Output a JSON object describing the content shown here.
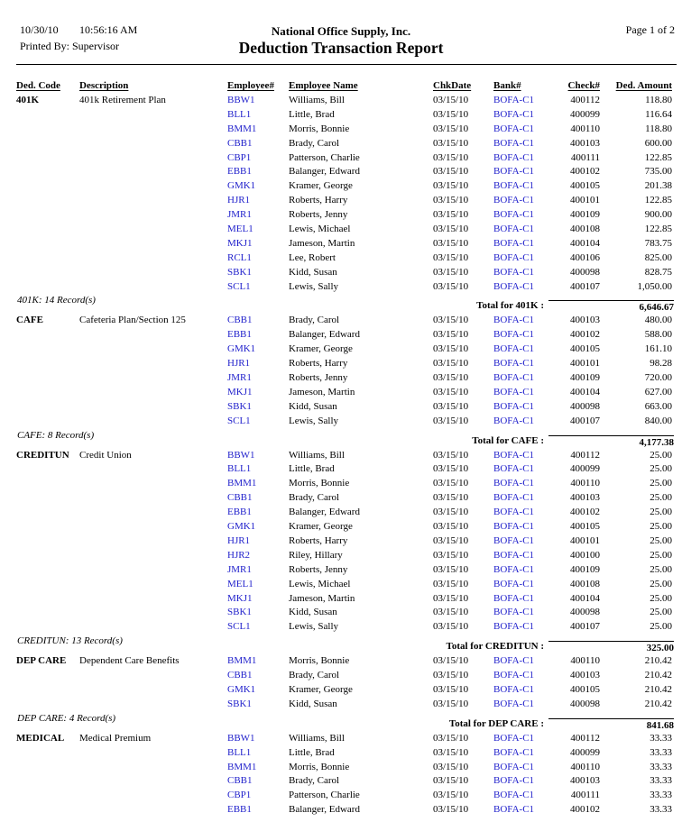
{
  "report": {
    "date": "10/30/10",
    "time": "10:56:16 AM",
    "printed_by": "Printed By: Supervisor",
    "company": "National Office Supply, Inc.",
    "title": "Deduction Transaction Report",
    "page": "Page 1 of 2"
  },
  "colors": {
    "link_blue": "#2222CC",
    "text": "#000000"
  },
  "table": {
    "columns": [
      "Ded. Code",
      "Description",
      "Employee#",
      "Employee Name",
      "ChkDate",
      "Bank#",
      "Check#",
      "Ded. Amount"
    ]
  },
  "sections": [
    {
      "code": "401K",
      "description": "401k Retirement Plan",
      "record_count": "401K: 14 Record(s)",
      "total_label": "Total for 401K :",
      "total_amount": "6,646.67",
      "rows": [
        {
          "emp": "BBW1",
          "name": "Williams, Bill",
          "chk_date": "03/15/10",
          "bank": "BOFA-C1",
          "check": "400112",
          "amount": "118.80"
        },
        {
          "emp": "BLL1",
          "name": "Little, Brad",
          "chk_date": "03/15/10",
          "bank": "BOFA-C1",
          "check": "400099",
          "amount": "116.64"
        },
        {
          "emp": "BMM1",
          "name": "Morris, Bonnie",
          "chk_date": "03/15/10",
          "bank": "BOFA-C1",
          "check": "400110",
          "amount": "118.80"
        },
        {
          "emp": "CBB1",
          "name": "Brady, Carol",
          "chk_date": "03/15/10",
          "bank": "BOFA-C1",
          "check": "400103",
          "amount": "600.00"
        },
        {
          "emp": "CBP1",
          "name": "Patterson, Charlie",
          "chk_date": "03/15/10",
          "bank": "BOFA-C1",
          "check": "400111",
          "amount": "122.85"
        },
        {
          "emp": "EBB1",
          "name": "Balanger, Edward",
          "chk_date": "03/15/10",
          "bank": "BOFA-C1",
          "check": "400102",
          "amount": "735.00"
        },
        {
          "emp": "GMK1",
          "name": "Kramer, George",
          "chk_date": "03/15/10",
          "bank": "BOFA-C1",
          "check": "400105",
          "amount": "201.38"
        },
        {
          "emp": "HJR1",
          "name": "Roberts, Harry",
          "chk_date": "03/15/10",
          "bank": "BOFA-C1",
          "check": "400101",
          "amount": "122.85"
        },
        {
          "emp": "JMR1",
          "name": "Roberts, Jenny",
          "chk_date": "03/15/10",
          "bank": "BOFA-C1",
          "check": "400109",
          "amount": "900.00"
        },
        {
          "emp": "MEL1",
          "name": "Lewis, Michael",
          "chk_date": "03/15/10",
          "bank": "BOFA-C1",
          "check": "400108",
          "amount": "122.85"
        },
        {
          "emp": "MKJ1",
          "name": "Jameson, Martin",
          "chk_date": "03/15/10",
          "bank": "BOFA-C1",
          "check": "400104",
          "amount": "783.75"
        },
        {
          "emp": "RCL1",
          "name": "Lee, Robert",
          "chk_date": "03/15/10",
          "bank": "BOFA-C1",
          "check": "400106",
          "amount": "825.00"
        },
        {
          "emp": "SBK1",
          "name": "Kidd, Susan",
          "chk_date": "03/15/10",
          "bank": "BOFA-C1",
          "check": "400098",
          "amount": "828.75"
        },
        {
          "emp": "SCL1",
          "name": "Lewis, Sally",
          "chk_date": "03/15/10",
          "bank": "BOFA-C1",
          "check": "400107",
          "amount": "1,050.00"
        }
      ]
    },
    {
      "code": "CAFE",
      "description": "Cafeteria Plan/Section 125",
      "record_count": "CAFE: 8 Record(s)",
      "total_label": "Total for CAFE :",
      "total_amount": "4,177.38",
      "rows": [
        {
          "emp": "CBB1",
          "name": "Brady, Carol",
          "chk_date": "03/15/10",
          "bank": "BOFA-C1",
          "check": "400103",
          "amount": "480.00"
        },
        {
          "emp": "EBB1",
          "name": "Balanger, Edward",
          "chk_date": "03/15/10",
          "bank": "BOFA-C1",
          "check": "400102",
          "amount": "588.00"
        },
        {
          "emp": "GMK1",
          "name": "Kramer, George",
          "chk_date": "03/15/10",
          "bank": "BOFA-C1",
          "check": "400105",
          "amount": "161.10"
        },
        {
          "emp": "HJR1",
          "name": "Roberts, Harry",
          "chk_date": "03/15/10",
          "bank": "BOFA-C1",
          "check": "400101",
          "amount": "98.28"
        },
        {
          "emp": "JMR1",
          "name": "Roberts, Jenny",
          "chk_date": "03/15/10",
          "bank": "BOFA-C1",
          "check": "400109",
          "amount": "720.00"
        },
        {
          "emp": "MKJ1",
          "name": "Jameson, Martin",
          "chk_date": "03/15/10",
          "bank": "BOFA-C1",
          "check": "400104",
          "amount": "627.00"
        },
        {
          "emp": "SBK1",
          "name": "Kidd, Susan",
          "chk_date": "03/15/10",
          "bank": "BOFA-C1",
          "check": "400098",
          "amount": "663.00"
        },
        {
          "emp": "SCL1",
          "name": "Lewis, Sally",
          "chk_date": "03/15/10",
          "bank": "BOFA-C1",
          "check": "400107",
          "amount": "840.00"
        }
      ]
    },
    {
      "code": "CREDITUN",
      "description": "Credit Union",
      "record_count": "CREDITUN: 13 Record(s)",
      "total_label": "Total for CREDITUN :",
      "total_amount": "325.00",
      "rows": [
        {
          "emp": "BBW1",
          "name": "Williams, Bill",
          "chk_date": "03/15/10",
          "bank": "BOFA-C1",
          "check": "400112",
          "amount": "25.00"
        },
        {
          "emp": "BLL1",
          "name": "Little, Brad",
          "chk_date": "03/15/10",
          "bank": "BOFA-C1",
          "check": "400099",
          "amount": "25.00"
        },
        {
          "emp": "BMM1",
          "name": "Morris, Bonnie",
          "chk_date": "03/15/10",
          "bank": "BOFA-C1",
          "check": "400110",
          "amount": "25.00"
        },
        {
          "emp": "CBB1",
          "name": "Brady, Carol",
          "chk_date": "03/15/10",
          "bank": "BOFA-C1",
          "check": "400103",
          "amount": "25.00"
        },
        {
          "emp": "EBB1",
          "name": "Balanger, Edward",
          "chk_date": "03/15/10",
          "bank": "BOFA-C1",
          "check": "400102",
          "amount": "25.00"
        },
        {
          "emp": "GMK1",
          "name": "Kramer, George",
          "chk_date": "03/15/10",
          "bank": "BOFA-C1",
          "check": "400105",
          "amount": "25.00"
        },
        {
          "emp": "HJR1",
          "name": "Roberts, Harry",
          "chk_date": "03/15/10",
          "bank": "BOFA-C1",
          "check": "400101",
          "amount": "25.00"
        },
        {
          "emp": "HJR2",
          "name": "Riley, Hillary",
          "chk_date": "03/15/10",
          "bank": "BOFA-C1",
          "check": "400100",
          "amount": "25.00"
        },
        {
          "emp": "JMR1",
          "name": "Roberts, Jenny",
          "chk_date": "03/15/10",
          "bank": "BOFA-C1",
          "check": "400109",
          "amount": "25.00"
        },
        {
          "emp": "MEL1",
          "name": "Lewis, Michael",
          "chk_date": "03/15/10",
          "bank": "BOFA-C1",
          "check": "400108",
          "amount": "25.00"
        },
        {
          "emp": "MKJ1",
          "name": "Jameson, Martin",
          "chk_date": "03/15/10",
          "bank": "BOFA-C1",
          "check": "400104",
          "amount": "25.00"
        },
        {
          "emp": "SBK1",
          "name": "Kidd, Susan",
          "chk_date": "03/15/10",
          "bank": "BOFA-C1",
          "check": "400098",
          "amount": "25.00"
        },
        {
          "emp": "SCL1",
          "name": "Lewis, Sally",
          "chk_date": "03/15/10",
          "bank": "BOFA-C1",
          "check": "400107",
          "amount": "25.00"
        }
      ]
    },
    {
      "code": "DEP CARE",
      "description": "Dependent Care Benefits",
      "record_count": "DEP CARE: 4 Record(s)",
      "total_label": "Total for DEP CARE :",
      "total_amount": "841.68",
      "rows": [
        {
          "emp": "BMM1",
          "name": "Morris, Bonnie",
          "chk_date": "03/15/10",
          "bank": "BOFA-C1",
          "check": "400110",
          "amount": "210.42"
        },
        {
          "emp": "CBB1",
          "name": "Brady, Carol",
          "chk_date": "03/15/10",
          "bank": "BOFA-C1",
          "check": "400103",
          "amount": "210.42"
        },
        {
          "emp": "GMK1",
          "name": "Kramer, George",
          "chk_date": "03/15/10",
          "bank": "BOFA-C1",
          "check": "400105",
          "amount": "210.42"
        },
        {
          "emp": "SBK1",
          "name": "Kidd, Susan",
          "chk_date": "03/15/10",
          "bank": "BOFA-C1",
          "check": "400098",
          "amount": "210.42"
        }
      ]
    },
    {
      "code": "MEDICAL",
      "description": "Medical Premium",
      "rows": [
        {
          "emp": "BBW1",
          "name": "Williams, Bill",
          "chk_date": "03/15/10",
          "bank": "BOFA-C1",
          "check": "400112",
          "amount": "33.33"
        },
        {
          "emp": "BLL1",
          "name": "Little, Brad",
          "chk_date": "03/15/10",
          "bank": "BOFA-C1",
          "check": "400099",
          "amount": "33.33"
        },
        {
          "emp": "BMM1",
          "name": "Morris, Bonnie",
          "chk_date": "03/15/10",
          "bank": "BOFA-C1",
          "check": "400110",
          "amount": "33.33"
        },
        {
          "emp": "CBB1",
          "name": "Brady, Carol",
          "chk_date": "03/15/10",
          "bank": "BOFA-C1",
          "check": "400103",
          "amount": "33.33"
        },
        {
          "emp": "CBP1",
          "name": "Patterson, Charlie",
          "chk_date": "03/15/10",
          "bank": "BOFA-C1",
          "check": "400111",
          "amount": "33.33"
        },
        {
          "emp": "EBB1",
          "name": "Balanger, Edward",
          "chk_date": "03/15/10",
          "bank": "BOFA-C1",
          "check": "400102",
          "amount": "33.33"
        }
      ]
    }
  ]
}
